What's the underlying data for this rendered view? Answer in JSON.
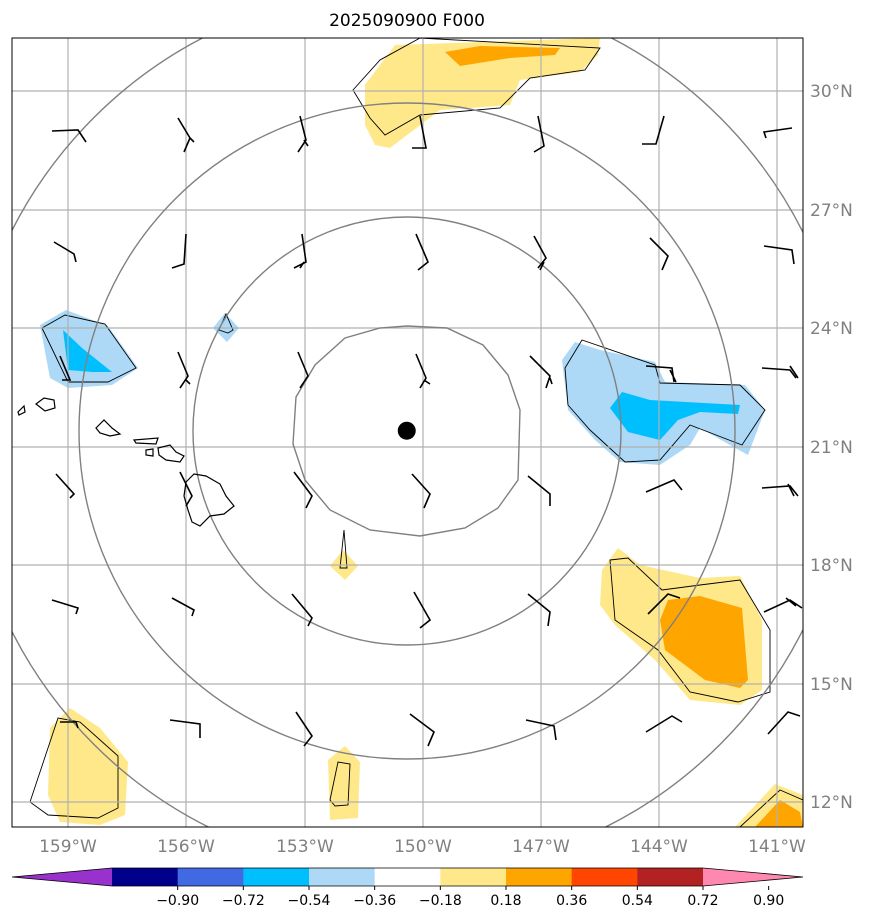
{
  "title": "2025090900 F000",
  "lat_labels": [
    "30°N",
    "27°N",
    "24°N",
    "21°N",
    "18°N",
    "15°N",
    "12°N"
  ],
  "lon_labels": [
    "159°W",
    "156°W",
    "153°W",
    "150°W",
    "147°W",
    "144°W",
    "141°W"
  ],
  "colorbar": {
    "colors": [
      "#9932cc",
      "#00008b",
      "#4169e1",
      "#00bfff",
      "#add8f6",
      "#ffffff",
      "#ffe88a",
      "#ffa500",
      "#ff4500",
      "#b22222",
      "#ff88b0"
    ],
    "ticks": [
      "−0.90",
      "−0.72",
      "−0.54",
      "−0.36",
      "−0.18",
      "0.18",
      "0.36",
      "0.54",
      "0.72",
      "0.90"
    ]
  },
  "center_marker": {
    "lat": 21.4,
    "lon": -150.4,
    "color": "#000000"
  }
}
